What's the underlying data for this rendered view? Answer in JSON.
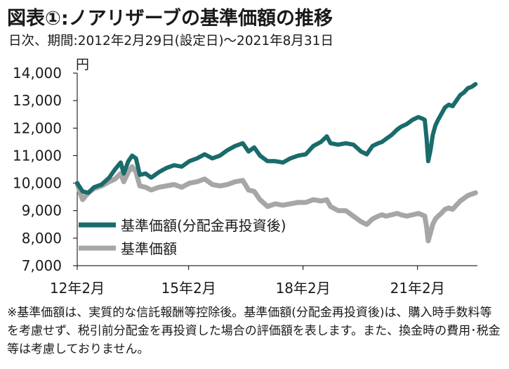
{
  "title": "図表①:ノアリザーブの基準価額の推移",
  "subtitle": "日次、期間:2012年2月29日(設定日)〜2021年8月31日",
  "footnote": "※基準価額は、実質的な信託報酬等控除後。基準価額(分配金再投資後)は、購入時手数料等を考慮せず、税引前分配金を再投資した場合の評価額を表します。また、換金時の費用･税金等は考慮しておりません。",
  "colors": {
    "reinvested": "#1a6b6b",
    "nav": "#a6a6a6",
    "axis": "#000000",
    "text": "#1a1a1a"
  },
  "chart_data": {
    "type": "line",
    "ylabel": "円",
    "ylim": [
      7000,
      14000
    ],
    "yticks": [
      7000,
      8000,
      9000,
      10000,
      11000,
      12000,
      13000,
      14000
    ],
    "ytick_labels": [
      "7,000",
      "8,000",
      "9,000",
      "10,000",
      "11,000",
      "12,000",
      "13,000",
      "14,000"
    ],
    "xlim": [
      2012.16,
      2021.66
    ],
    "xticks": [
      2012.08,
      2015.08,
      2018.08,
      2021.08
    ],
    "xtick_labels": [
      "12年2月",
      "15年2月",
      "18年2月",
      "21年2月"
    ],
    "grid": false,
    "legend": "center-left",
    "series": [
      {
        "name": "基準価額(分配金再投資後)",
        "color": "#1a6b6b",
        "points": [
          [
            2012.16,
            10000
          ],
          [
            2012.3,
            9700
          ],
          [
            2012.45,
            9650
          ],
          [
            2012.6,
            9850
          ],
          [
            2012.8,
            9950
          ],
          [
            2013.0,
            10200
          ],
          [
            2013.15,
            10500
          ],
          [
            2013.3,
            10750
          ],
          [
            2013.38,
            10350
          ],
          [
            2013.5,
            10800
          ],
          [
            2013.6,
            11000
          ],
          [
            2013.7,
            10900
          ],
          [
            2013.8,
            10300
          ],
          [
            2013.95,
            10350
          ],
          [
            2014.1,
            10200
          ],
          [
            2014.3,
            10400
          ],
          [
            2014.5,
            10550
          ],
          [
            2014.7,
            10650
          ],
          [
            2014.9,
            10600
          ],
          [
            2015.1,
            10800
          ],
          [
            2015.3,
            10900
          ],
          [
            2015.5,
            11050
          ],
          [
            2015.7,
            10900
          ],
          [
            2015.9,
            11000
          ],
          [
            2016.1,
            11200
          ],
          [
            2016.3,
            11350
          ],
          [
            2016.5,
            11450
          ],
          [
            2016.65,
            11150
          ],
          [
            2016.8,
            11300
          ],
          [
            2016.95,
            11000
          ],
          [
            2017.15,
            10800
          ],
          [
            2017.35,
            10800
          ],
          [
            2017.55,
            10750
          ],
          [
            2017.75,
            10900
          ],
          [
            2017.95,
            11000
          ],
          [
            2018.15,
            11050
          ],
          [
            2018.35,
            11350
          ],
          [
            2018.55,
            11500
          ],
          [
            2018.7,
            11700
          ],
          [
            2018.8,
            11450
          ],
          [
            2019.0,
            11400
          ],
          [
            2019.2,
            11450
          ],
          [
            2019.4,
            11400
          ],
          [
            2019.6,
            11150
          ],
          [
            2019.75,
            11050
          ],
          [
            2019.9,
            11350
          ],
          [
            2020.05,
            11450
          ],
          [
            2020.15,
            11500
          ],
          [
            2020.25,
            11600
          ],
          [
            2020.4,
            11750
          ],
          [
            2020.55,
            11950
          ],
          [
            2020.65,
            12050
          ],
          [
            2020.8,
            12150
          ],
          [
            2020.95,
            12300
          ],
          [
            2021.1,
            12400
          ],
          [
            2021.2,
            12350
          ],
          [
            2021.27,
            12300
          ],
          [
            2021.32,
            11600
          ],
          [
            2021.36,
            10800
          ],
          [
            2021.42,
            11200
          ],
          [
            2021.48,
            11750
          ],
          [
            2021.55,
            12100
          ],
          [
            2021.62,
            12300
          ],
          [
            2021.7,
            12500
          ],
          [
            2021.8,
            12750
          ],
          [
            2021.9,
            12850
          ],
          [
            2022.0,
            12800
          ],
          [
            2022.1,
            13000
          ],
          [
            2022.2,
            13200
          ],
          [
            2022.3,
            13300
          ],
          [
            2022.4,
            13450
          ],
          [
            2022.5,
            13500
          ],
          [
            2022.6,
            13600
          ]
        ]
      },
      {
        "name": "基準価額",
        "color": "#a6a6a6",
        "points": [
          [
            2012.16,
            10000
          ],
          [
            2012.22,
            9700
          ],
          [
            2012.3,
            9400
          ],
          [
            2012.45,
            9650
          ],
          [
            2012.6,
            9800
          ],
          [
            2012.8,
            9900
          ],
          [
            2013.0,
            10050
          ],
          [
            2013.15,
            10150
          ],
          [
            2013.3,
            10350
          ],
          [
            2013.38,
            10050
          ],
          [
            2013.5,
            10400
          ],
          [
            2013.6,
            10600
          ],
          [
            2013.7,
            10400
          ],
          [
            2013.8,
            9900
          ],
          [
            2013.95,
            9850
          ],
          [
            2014.1,
            9750
          ],
          [
            2014.3,
            9850
          ],
          [
            2014.5,
            9900
          ],
          [
            2014.7,
            9950
          ],
          [
            2014.9,
            9850
          ],
          [
            2015.1,
            10000
          ],
          [
            2015.3,
            10050
          ],
          [
            2015.5,
            10150
          ],
          [
            2015.7,
            9950
          ],
          [
            2015.9,
            9900
          ],
          [
            2016.1,
            9950
          ],
          [
            2016.3,
            10050
          ],
          [
            2016.5,
            10100
          ],
          [
            2016.65,
            9750
          ],
          [
            2016.8,
            9700
          ],
          [
            2016.95,
            9400
          ],
          [
            2017.15,
            9150
          ],
          [
            2017.35,
            9250
          ],
          [
            2017.55,
            9200
          ],
          [
            2017.75,
            9250
          ],
          [
            2017.95,
            9300
          ],
          [
            2018.15,
            9300
          ],
          [
            2018.35,
            9400
          ],
          [
            2018.55,
            9350
          ],
          [
            2018.7,
            9400
          ],
          [
            2018.8,
            9150
          ],
          [
            2019.0,
            9000
          ],
          [
            2019.2,
            9000
          ],
          [
            2019.4,
            8800
          ],
          [
            2019.6,
            8600
          ],
          [
            2019.75,
            8500
          ],
          [
            2019.9,
            8700
          ],
          [
            2020.05,
            8800
          ],
          [
            2020.15,
            8850
          ],
          [
            2020.25,
            8800
          ],
          [
            2020.4,
            8850
          ],
          [
            2020.55,
            8900
          ],
          [
            2020.65,
            8850
          ],
          [
            2020.8,
            8800
          ],
          [
            2020.95,
            8850
          ],
          [
            2021.1,
            8900
          ],
          [
            2021.2,
            8850
          ],
          [
            2021.27,
            8800
          ],
          [
            2021.32,
            8400
          ],
          [
            2021.36,
            7900
          ],
          [
            2021.42,
            8200
          ],
          [
            2021.48,
            8500
          ],
          [
            2021.55,
            8700
          ],
          [
            2021.62,
            8800
          ],
          [
            2021.7,
            8900
          ],
          [
            2021.8,
            9050
          ],
          [
            2021.9,
            9100
          ],
          [
            2022.0,
            9050
          ],
          [
            2022.1,
            9200
          ],
          [
            2022.2,
            9350
          ],
          [
            2022.3,
            9450
          ],
          [
            2022.4,
            9550
          ],
          [
            2022.5,
            9600
          ],
          [
            2022.6,
            9650
          ]
        ]
      }
    ]
  }
}
